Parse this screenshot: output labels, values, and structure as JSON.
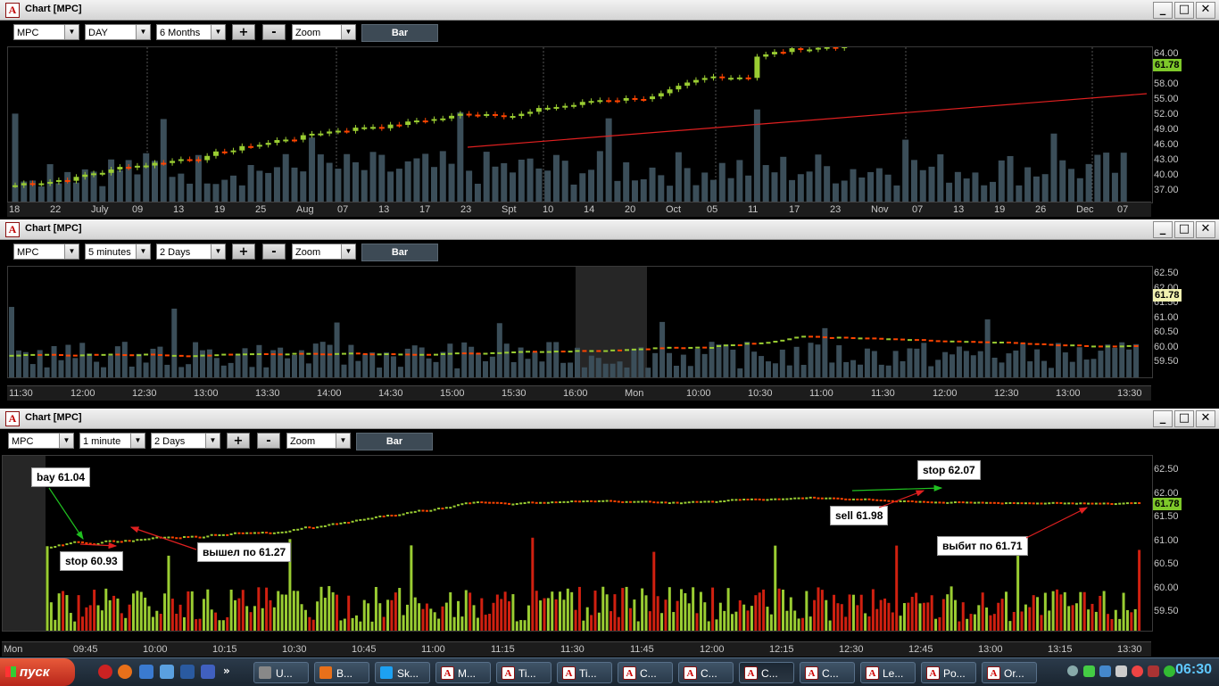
{
  "windows": [
    {
      "title": "Chart [MPC]",
      "symbol": "MPC",
      "interval": "DAY",
      "range": "6 Months",
      "zoom": "Zoom",
      "bar_label": "Bar",
      "plus": "+",
      "minus": "-",
      "last_price": "61.78",
      "y_ticks": [
        "64.00",
        "61.00",
        "58.00",
        "55.00",
        "52.00",
        "49.00",
        "46.00",
        "43.00",
        "40.00",
        "37.00"
      ],
      "x_labels": [
        "18",
        "22",
        "July",
        "09",
        "13",
        "19",
        "25",
        "Aug",
        "07",
        "13",
        "17",
        "23",
        "Spt",
        "10",
        "14",
        "20",
        "Oct",
        "05",
        "11",
        "17",
        "23",
        "Nov",
        "07",
        "13",
        "19",
        "26",
        "Dec",
        "07"
      ]
    },
    {
      "title": "Chart [MPC]",
      "symbol": "MPC",
      "interval": "5 minutes",
      "range": "2 Days",
      "zoom": "Zoom",
      "bar_label": "Bar",
      "plus": "+",
      "minus": "-",
      "last_price": "61.78",
      "y_ticks": [
        "62.50",
        "62.00",
        "61.50",
        "61.00",
        "60.50",
        "60.00",
        "59.50"
      ],
      "x_labels": [
        "11:30",
        "12:00",
        "12:30",
        "13:00",
        "13:30",
        "14:00",
        "14:30",
        "15:00",
        "15:30",
        "16:00",
        "Mon",
        "10:00",
        "10:30",
        "11:00",
        "11:30",
        "12:00",
        "12:30",
        "13:00",
        "13:30"
      ]
    },
    {
      "title": "Chart [MPC]",
      "symbol": "MPC",
      "interval": "1 minute",
      "range": "2 Days",
      "zoom": "Zoom",
      "bar_label": "Bar",
      "plus": "+",
      "minus": "-",
      "last_price": "61.78",
      "y_ticks": [
        "62.50",
        "62.00",
        "61.50",
        "61.00",
        "60.50",
        "60.00",
        "59.50"
      ],
      "x_labels": [
        "Mon",
        "09:45",
        "10:00",
        "10:15",
        "10:30",
        "10:45",
        "11:00",
        "11:15",
        "11:30",
        "11:45",
        "12:00",
        "12:15",
        "12:30",
        "12:45",
        "13:00",
        "13:15",
        "13:30"
      ],
      "annotations": {
        "buy": "bay 61.04",
        "stop1": "stop 60.93",
        "exit1": "вышел по 61.27",
        "stop2": "stop 62.07",
        "sell": "sell 61.98",
        "exit2": "выбит по 61.71"
      }
    }
  ],
  "taskbar": {
    "start_label": "пуск",
    "tasks": [
      "U...",
      "B...",
      "Sk...",
      "M...",
      "Ti...",
      "Ti...",
      "C...",
      "C...",
      "C...",
      "C...",
      "Le...",
      "Po...",
      "Or..."
    ],
    "clock": "06:30"
  },
  "colors": {
    "up": "#9acd32",
    "down": "#ff4500",
    "volume": "#3b4e59",
    "ma": "#e02020",
    "tag_green": "#7ec82a"
  }
}
